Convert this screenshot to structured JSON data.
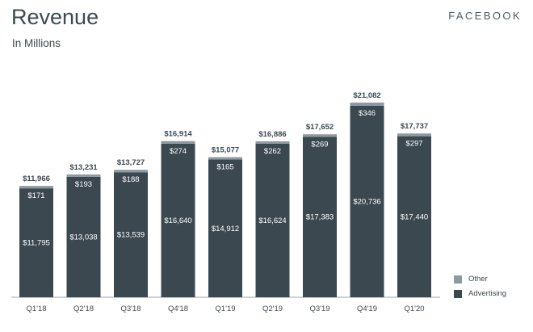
{
  "header": {
    "title": "Revenue",
    "subtitle": "In Millions",
    "brand": "FACEBOOK"
  },
  "colors": {
    "advertising": "#3b4850",
    "other": "#8e9aa1",
    "axis": "#9aa5ab",
    "text": "#3d4a52"
  },
  "chart_data": {
    "type": "bar",
    "stacked": true,
    "categories": [
      "Q1'18",
      "Q2'18",
      "Q3'18",
      "Q4'18",
      "Q1'19",
      "Q2'19",
      "Q3'19",
      "Q4'19",
      "Q1'20"
    ],
    "series": [
      {
        "name": "Advertising",
        "values": [
          11795,
          13038,
          13539,
          16640,
          14912,
          16624,
          17383,
          20736,
          17440
        ]
      },
      {
        "name": "Other",
        "values": [
          171,
          193,
          188,
          274,
          165,
          262,
          269,
          346,
          297
        ]
      }
    ],
    "totals": [
      11966,
      13231,
      13727,
      16914,
      15077,
      16886,
      17652,
      21082,
      17737
    ],
    "value_labels": {
      "advertising": [
        "$11,795",
        "$13,038",
        "$13,539",
        "$16,640",
        "$14,912",
        "$16,624",
        "$17,383",
        "$20,736",
        "$17,440"
      ],
      "other": [
        "$171",
        "$193",
        "$188",
        "$274",
        "$165",
        "$262",
        "$269",
        "$346",
        "$297"
      ],
      "totals": [
        "$11,966",
        "$13,231",
        "$13,727",
        "$16,914",
        "$15,077",
        "$16,886",
        "$17,652",
        "$21,082",
        "$17,737"
      ]
    },
    "title": "Revenue",
    "subtitle": "In Millions",
    "xlabel": "",
    "ylabel": "",
    "ylim": [
      0,
      21082
    ],
    "grid": false,
    "legend": {
      "placement": "bottom-right",
      "entries": [
        "Other",
        "Advertising"
      ]
    }
  }
}
